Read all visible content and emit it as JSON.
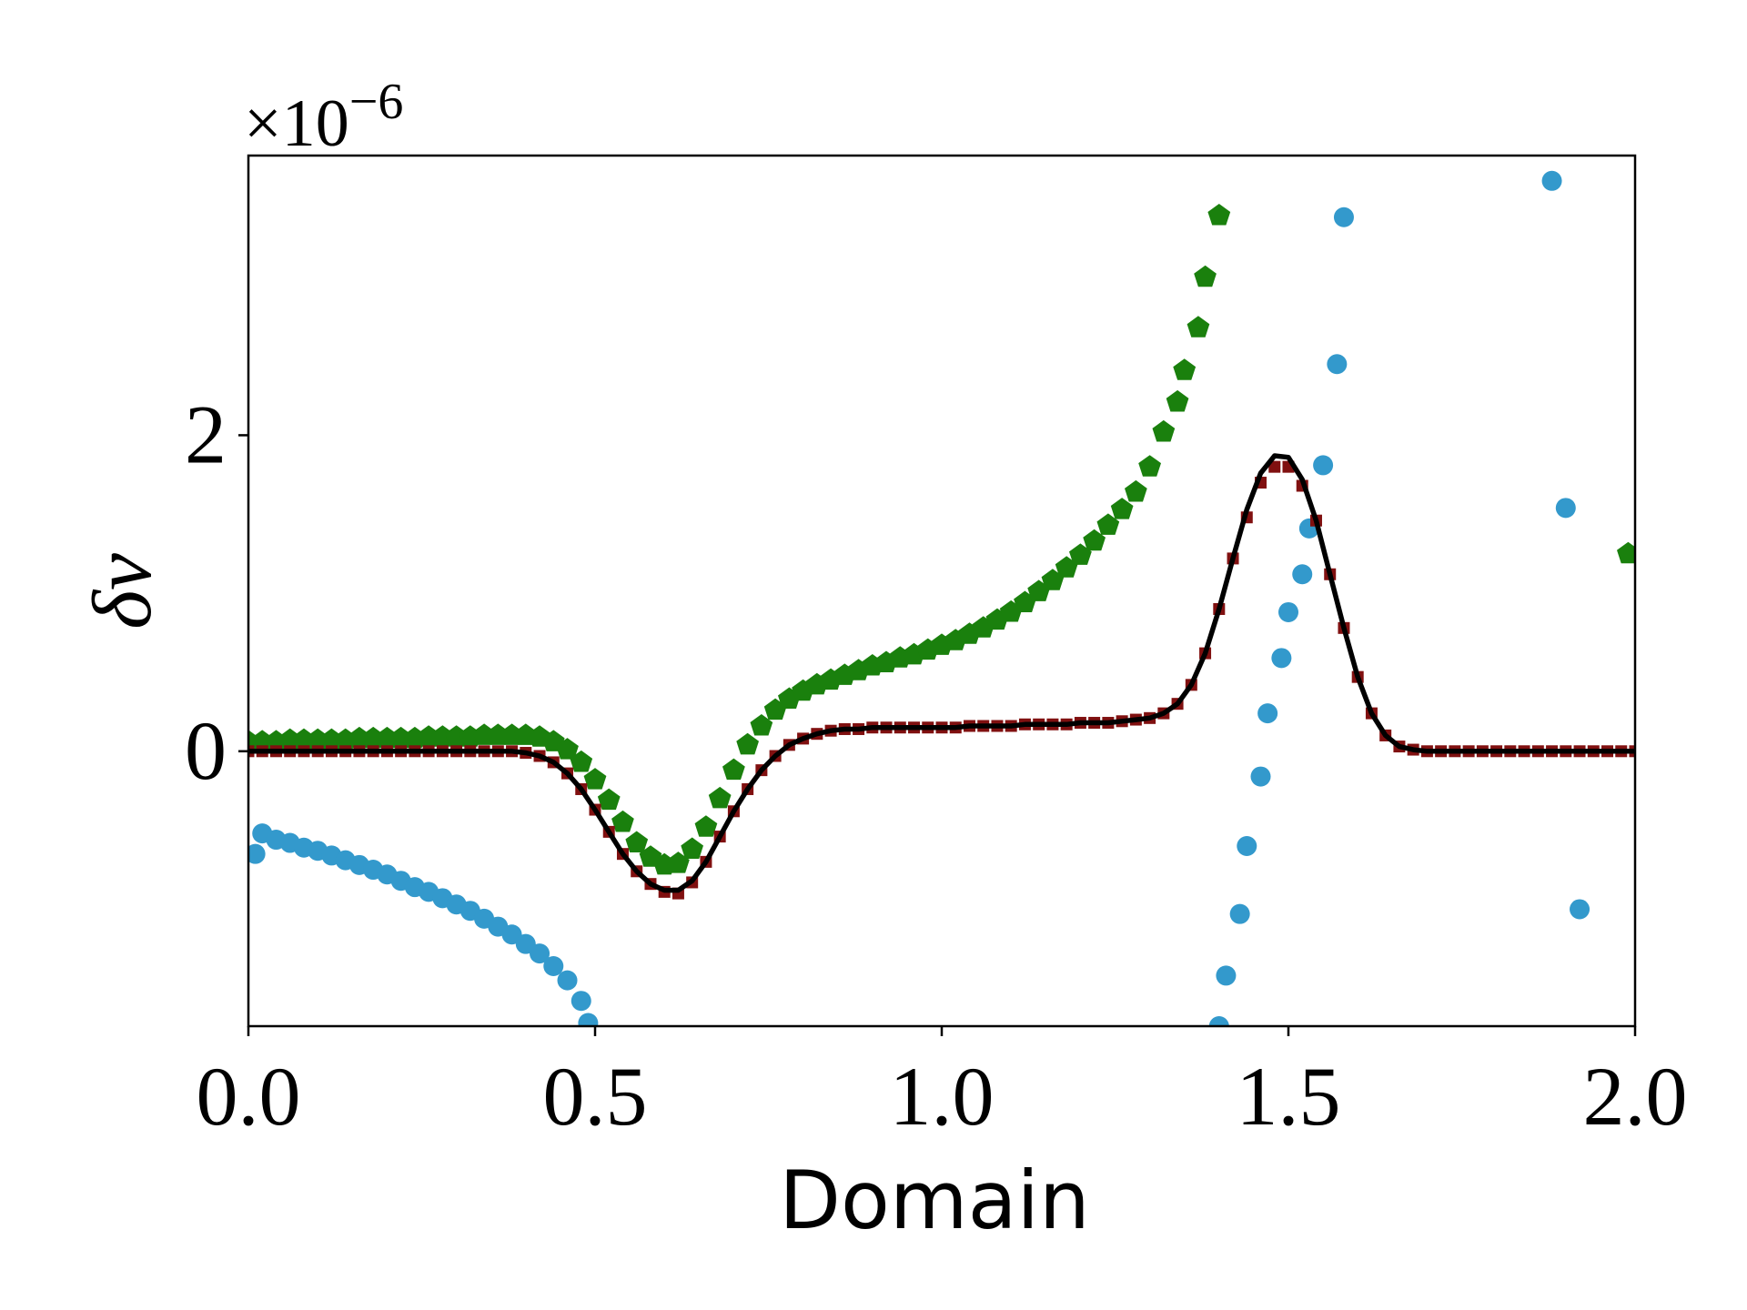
{
  "chart_data": {
    "type": "scatter",
    "x_label": "Domain",
    "y_label": "δv",
    "offset_text": {
      "base": "×10",
      "exponent": "−6"
    },
    "xlim": [
      0,
      2
    ],
    "ylim": [
      -1.74,
      3.77
    ],
    "xticks": [
      {
        "value": 0,
        "label": "0.0"
      },
      {
        "value": 0.5,
        "label": "0.5"
      },
      {
        "value": 1,
        "label": "1.0"
      },
      {
        "value": 1.5,
        "label": "1.5"
      },
      {
        "value": 2,
        "label": "2.0"
      }
    ],
    "yticks": [
      0,
      2
    ],
    "grid": false,
    "x": [
      0,
      0.02,
      0.04,
      0.06,
      0.08,
      0.1,
      0.12,
      0.14,
      0.16,
      0.18,
      0.2,
      0.22,
      0.24,
      0.26,
      0.28,
      0.3,
      0.32,
      0.34,
      0.36,
      0.38,
      0.4,
      0.42,
      0.44,
      0.46,
      0.48,
      0.5,
      0.52,
      0.54,
      0.56,
      0.58,
      0.6,
      0.62,
      0.64,
      0.66,
      0.68,
      0.7,
      0.72,
      0.74,
      0.76,
      0.78,
      0.8,
      0.82,
      0.84,
      0.86,
      0.88,
      0.9,
      0.92,
      0.94,
      0.96,
      0.98,
      1,
      1.02,
      1.04,
      1.06,
      1.08,
      1.1,
      1.12,
      1.14,
      1.16,
      1.18,
      1.2,
      1.22,
      1.24,
      1.26,
      1.28,
      1.3,
      1.32,
      1.34,
      1.36,
      1.38,
      1.4,
      1.42,
      1.44,
      1.46,
      1.48,
      1.5,
      1.52,
      1.54,
      1.56,
      1.58,
      1.6,
      1.62,
      1.64,
      1.66,
      1.68,
      1.7,
      1.72,
      1.74,
      1.76,
      1.78,
      1.8,
      1.82,
      1.84,
      1.86,
      1.88,
      1.9,
      1.92,
      1.94,
      1.96,
      1.98,
      2
    ],
    "series": [
      {
        "marker": "circle",
        "color": "#3399cc",
        "x": [
          0.01,
          0.02,
          0.04,
          0.06,
          0.08,
          0.1,
          0.12,
          0.14,
          0.16,
          0.18,
          0.2,
          0.22,
          0.24,
          0.26,
          0.28,
          0.3,
          0.32,
          0.34,
          0.36,
          0.38,
          0.4,
          0.42,
          0.44,
          0.46,
          0.48,
          0.49,
          1.4,
          1.41,
          1.43,
          1.44,
          1.46,
          1.47,
          1.49,
          1.5,
          1.52,
          1.53,
          1.55,
          1.57,
          1.58,
          1.88,
          1.9,
          1.92
        ],
        "values": [
          -0.65,
          -0.52,
          -0.56,
          -0.58,
          -0.61,
          -0.63,
          -0.66,
          -0.69,
          -0.72,
          -0.75,
          -0.78,
          -0.82,
          -0.86,
          -0.89,
          -0.93,
          -0.97,
          -1.01,
          -1.06,
          -1.11,
          -1.16,
          -1.22,
          -1.28,
          -1.36,
          -1.45,
          -1.58,
          -1.72,
          -1.74,
          -1.42,
          -1.03,
          -0.6,
          -0.16,
          0.24,
          0.59,
          0.88,
          1.12,
          1.41,
          1.81,
          2.45,
          3.38,
          3.61,
          1.54,
          -1.0
        ]
      },
      {
        "marker": "pentagon",
        "color": "#1a800d",
        "x": [
          0,
          0.02,
          0.04,
          0.06,
          0.08,
          0.1,
          0.12,
          0.14,
          0.16,
          0.18,
          0.2,
          0.22,
          0.24,
          0.26,
          0.28,
          0.3,
          0.32,
          0.34,
          0.36,
          0.38,
          0.4,
          0.42,
          0.44,
          0.46,
          0.48,
          0.5,
          0.52,
          0.54,
          0.56,
          0.58,
          0.6,
          0.62,
          0.64,
          0.66,
          0.68,
          0.7,
          0.72,
          0.74,
          0.76,
          0.78,
          0.8,
          0.82,
          0.84,
          0.86,
          0.88,
          0.9,
          0.92,
          0.94,
          0.96,
          0.98,
          1,
          1.02,
          1.04,
          1.06,
          1.08,
          1.1,
          1.12,
          1.14,
          1.16,
          1.18,
          1.2,
          1.22,
          1.24,
          1.26,
          1.28,
          1.3,
          1.32,
          1.34,
          1.35,
          1.37,
          1.38,
          1.4,
          1.99
        ],
        "values": [
          0.06,
          0.06,
          0.06,
          0.07,
          0.07,
          0.07,
          0.07,
          0.07,
          0.08,
          0.08,
          0.08,
          0.08,
          0.08,
          0.09,
          0.09,
          0.09,
          0.09,
          0.1,
          0.1,
          0.1,
          0.1,
          0.09,
          0.06,
          0.01,
          -0.07,
          -0.18,
          -0.31,
          -0.45,
          -0.58,
          -0.67,
          -0.72,
          -0.71,
          -0.62,
          -0.48,
          -0.3,
          -0.12,
          0.04,
          0.16,
          0.26,
          0.33,
          0.38,
          0.42,
          0.45,
          0.48,
          0.51,
          0.54,
          0.56,
          0.59,
          0.61,
          0.64,
          0.67,
          0.7,
          0.74,
          0.78,
          0.83,
          0.88,
          0.94,
          1.01,
          1.08,
          1.16,
          1.24,
          1.33,
          1.43,
          1.53,
          1.64,
          1.8,
          2.02,
          2.21,
          2.41,
          2.68,
          3.0,
          3.39,
          1.25
        ]
      },
      {
        "marker": "square",
        "color": "#801010",
        "values": [
          0,
          0,
          0,
          0,
          0,
          0,
          0,
          0,
          0,
          0,
          0,
          0,
          0,
          0,
          0,
          0,
          0,
          0,
          0,
          0,
          -0.01,
          -0.03,
          -0.07,
          -0.14,
          -0.24,
          -0.37,
          -0.51,
          -0.65,
          -0.76,
          -0.84,
          -0.89,
          -0.9,
          -0.83,
          -0.7,
          -0.54,
          -0.38,
          -0.24,
          -0.12,
          -0.03,
          0.04,
          0.08,
          0.11,
          0.13,
          0.14,
          0.14,
          0.15,
          0.15,
          0.15,
          0.15,
          0.15,
          0.15,
          0.15,
          0.16,
          0.16,
          0.16,
          0.16,
          0.17,
          0.17,
          0.17,
          0.17,
          0.18,
          0.18,
          0.18,
          0.19,
          0.2,
          0.21,
          0.24,
          0.3,
          0.42,
          0.62,
          0.9,
          1.22,
          1.48,
          1.7,
          1.8,
          1.8,
          1.68,
          1.46,
          1.12,
          0.78,
          0.47,
          0.24,
          0.1,
          0.03,
          0.01,
          0,
          0,
          0,
          0,
          0,
          0,
          0,
          0,
          0,
          0,
          0,
          0,
          0,
          0,
          0,
          0
        ]
      },
      {
        "marker": "line",
        "color": "#000000",
        "values": [
          0,
          0,
          0,
          0,
          0,
          0,
          0,
          0,
          0,
          0,
          0,
          0,
          0,
          0,
          0,
          0,
          0,
          0,
          0,
          0,
          -0.01,
          -0.03,
          -0.07,
          -0.14,
          -0.24,
          -0.37,
          -0.51,
          -0.65,
          -0.76,
          -0.84,
          -0.88,
          -0.88,
          -0.82,
          -0.7,
          -0.54,
          -0.38,
          -0.24,
          -0.12,
          -0.03,
          0.04,
          0.08,
          0.11,
          0.13,
          0.14,
          0.14,
          0.15,
          0.15,
          0.15,
          0.15,
          0.15,
          0.15,
          0.15,
          0.16,
          0.16,
          0.16,
          0.16,
          0.17,
          0.17,
          0.17,
          0.17,
          0.18,
          0.18,
          0.18,
          0.19,
          0.2,
          0.21,
          0.24,
          0.3,
          0.42,
          0.62,
          0.9,
          1.22,
          1.53,
          1.76,
          1.87,
          1.86,
          1.72,
          1.46,
          1.12,
          0.78,
          0.47,
          0.24,
          0.1,
          0.03,
          0.01,
          0,
          0,
          0,
          0,
          0,
          0,
          0,
          0,
          0,
          0,
          0,
          0,
          0,
          0,
          0,
          0
        ]
      }
    ]
  }
}
